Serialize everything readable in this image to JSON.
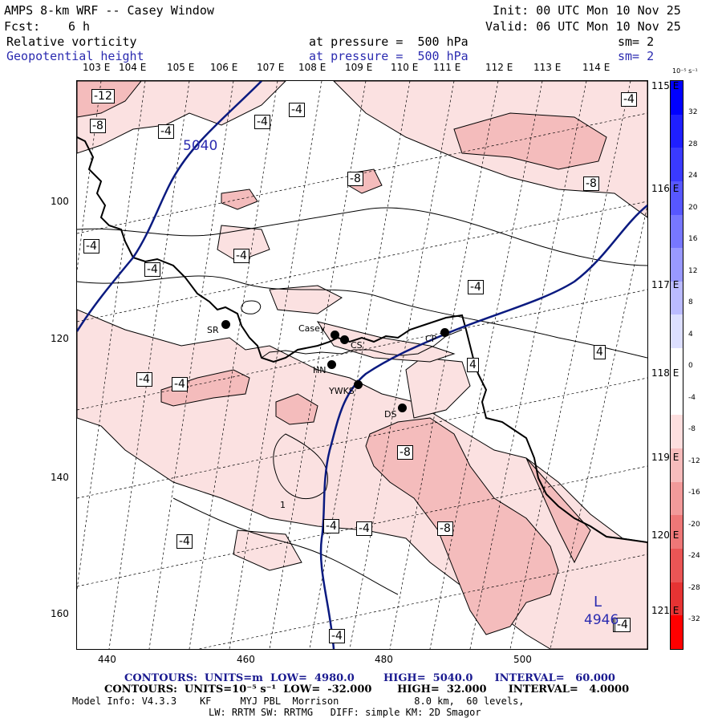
{
  "header": {
    "title": "AMPS 8-km WRF -- Casey Window",
    "fcst_label": "Fcst:",
    "fcst_value": "6 h",
    "init": "Init: 00 UTC Mon 10 Nov 25",
    "valid": "Valid: 06 UTC Mon 10 Nov 25",
    "field1_name": "Relative vorticity",
    "field1_level": "at pressure =  500 hPa",
    "field1_sm": "sm= 2",
    "field2_name": "Geopotential height",
    "field2_level": "at pressure =  500 hPa",
    "field2_sm": "sm= 2"
  },
  "map": {
    "top_lon_labels": [
      "103 E",
      "104 E",
      "105 E",
      "106 E",
      "107 E",
      "108 E",
      "109 E",
      "110 E",
      "111 E",
      "112 E",
      "113 E",
      "114 E"
    ],
    "right_lat_labels": [
      "115 E",
      "116 E",
      "117 E",
      "118 E",
      "119 E",
      "120 E",
      "121 E"
    ],
    "x_ticks": [
      "440",
      "460",
      "480",
      "500"
    ],
    "y_ticks": [
      "100",
      "120",
      "140",
      "160"
    ],
    "height_label": "5040",
    "low_label": "L",
    "low_value": "4946",
    "contour_labels": [
      "-12",
      "-8",
      "-4",
      "-4",
      "-4",
      "-8",
      "-8",
      "-4",
      "-4",
      "-4",
      "-4",
      "-4",
      "-4",
      "4",
      "4",
      "-4",
      "-8",
      "-4",
      "-8",
      "-4",
      "-4",
      "-4",
      "-8",
      "-4",
      "-4",
      "1"
    ],
    "stations": [
      {
        "name": "SR"
      },
      {
        "name": "Casey"
      },
      {
        "name": "CS"
      },
      {
        "name": "CP"
      },
      {
        "name": "HN"
      },
      {
        "name": "YWKS"
      },
      {
        "name": "DS"
      }
    ],
    "colors": {
      "fill_light": "#fbe1e1",
      "fill_medium": "#f4bcbc",
      "height_line": "#0a1a80",
      "coast": "#000000"
    }
  },
  "colorbar": {
    "unit": "10⁻⁵ s⁻¹",
    "labels": [
      "32",
      "28",
      "24",
      "20",
      "16",
      "12",
      "8",
      "4",
      "0",
      "-4",
      "-8",
      "-12",
      "-16",
      "-20",
      "-24",
      "-28",
      "-32"
    ],
    "colors": [
      "#0000ff",
      "#1f1fff",
      "#3a3aff",
      "#5757ff",
      "#7777ff",
      "#9999ff",
      "#bbbbff",
      "#dddfff",
      "#ffffff",
      "#ffffff",
      "#fddede",
      "#f7bcbc",
      "#f29a9a",
      "#ee7777",
      "#ea5555",
      "#e63333",
      "#ff0000"
    ]
  },
  "footer": {
    "line1": "CONTOURS:  UNITS=m  LOW=  4980.0        HIGH=  5040.0      INTERVAL=   60.000",
    "line2": "CONTOURS:  UNITS=10⁻⁵ s⁻¹  LOW=  -32.000       HIGH=  32.000      INTERVAL=   4.0000",
    "line3": "Model Info: V4.3.3    KF     MYJ PBL  Morrison             8.0 km,  60 levels,",
    "line4": "LW: RRTM SW: RRTMG   DIFF: simple KM: 2D Smagor"
  }
}
